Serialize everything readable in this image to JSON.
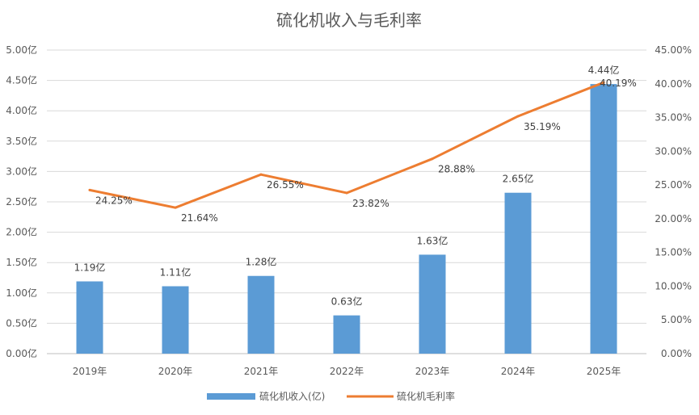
{
  "chart_data": {
    "type": "bar",
    "title": "硫化机收入与毛利率",
    "categories": [
      "2019年",
      "2020年",
      "2021年",
      "2022年",
      "2023年",
      "2024年",
      "2025年"
    ],
    "series": [
      {
        "name": "硫化机收入(亿)",
        "type": "bar",
        "axis": "left",
        "color": "#5B9BD5",
        "values": [
          1.19,
          1.11,
          1.28,
          0.63,
          1.63,
          2.65,
          4.44
        ],
        "labels": [
          "1.19亿",
          "1.11亿",
          "1.28亿",
          "0.63亿",
          "1.63亿",
          "2.65亿",
          "4.44亿"
        ]
      },
      {
        "name": "硫化机毛利率",
        "type": "line",
        "axis": "right",
        "color": "#ED7D31",
        "values": [
          24.25,
          21.64,
          26.55,
          23.82,
          28.88,
          35.19,
          40.19
        ],
        "labels": [
          "24.25%",
          "21.64%",
          "26.55%",
          "23.82%",
          "28.88%",
          "35.19%",
          "40.19%"
        ]
      }
    ],
    "y_left": {
      "min": 0,
      "max": 5,
      "ticks": [
        0,
        0.5,
        1,
        1.5,
        2,
        2.5,
        3,
        3.5,
        4,
        4.5,
        5
      ],
      "tick_labels": [
        "0.00亿",
        "0.50亿",
        "1.00亿",
        "1.50亿",
        "2.00亿",
        "2.50亿",
        "3.00亿",
        "3.50亿",
        "4.00亿",
        "4.50亿",
        "5.00亿"
      ]
    },
    "y_right": {
      "min": 0,
      "max": 45,
      "ticks": [
        0,
        5,
        10,
        15,
        20,
        25,
        30,
        35,
        40,
        45
      ],
      "tick_labels": [
        "0.00%",
        "5.00%",
        "10.00%",
        "15.00%",
        "20.00%",
        "25.00%",
        "30.00%",
        "35.00%",
        "40.00%",
        "45.00%"
      ]
    },
    "grid": true,
    "legend_position": "bottom"
  }
}
